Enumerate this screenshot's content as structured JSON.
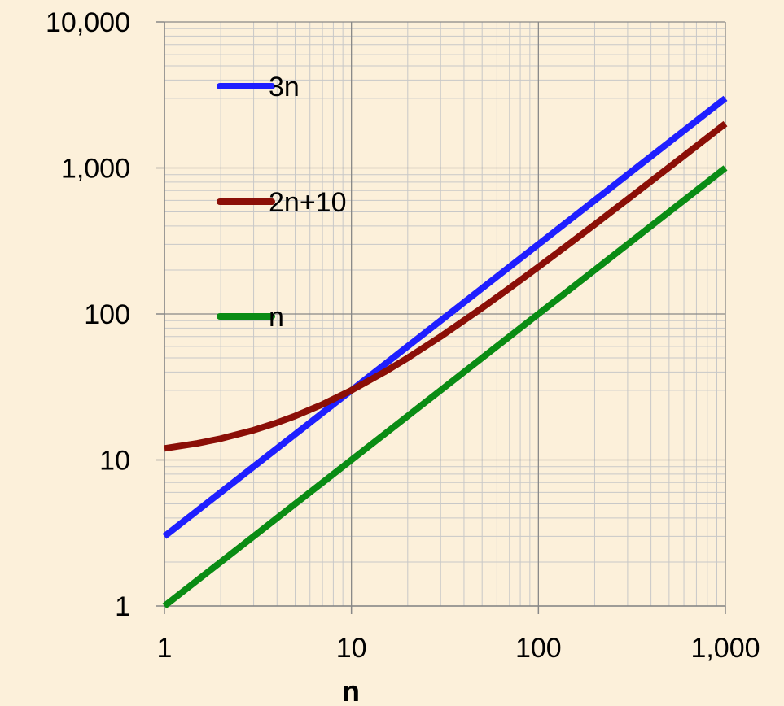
{
  "chart_data": {
    "type": "line",
    "x_scale": "log",
    "y_scale": "log",
    "xlim": [
      1,
      1000
    ],
    "ylim": [
      1,
      10000
    ],
    "xlabel": "n",
    "ylabel": "",
    "title": "",
    "grid": true,
    "legend_position": "top-left",
    "x_ticks": [
      1,
      10,
      100,
      1000
    ],
    "x_tick_labels": [
      "1",
      "10",
      "100",
      "1,000"
    ],
    "y_ticks": [
      1,
      10,
      100,
      1000,
      10000
    ],
    "y_tick_labels": [
      "1",
      "10",
      "100",
      "1,000",
      "10,000"
    ],
    "x": [
      1,
      1.5,
      2,
      3,
      4,
      5,
      7,
      10,
      15,
      20,
      30,
      50,
      70,
      100,
      150,
      200,
      300,
      500,
      700,
      1000
    ],
    "series": [
      {
        "name": "3n",
        "color": "#1F1FFF",
        "values": [
          3,
          4.5,
          6,
          9,
          12,
          15,
          21,
          30,
          45,
          60,
          90,
          150,
          210,
          300,
          450,
          600,
          900,
          1500,
          2100,
          3000
        ]
      },
      {
        "name": "2n+10",
        "color": "#8B0F07",
        "values": [
          12,
          13,
          14,
          16,
          18,
          20,
          24,
          30,
          40,
          50,
          70,
          110,
          150,
          210,
          310,
          410,
          610,
          1010,
          1410,
          2010
        ]
      },
      {
        "name": "n",
        "color": "#0A8C14",
        "values": [
          1,
          1.5,
          2,
          3,
          4,
          5,
          7,
          10,
          15,
          20,
          30,
          50,
          70,
          100,
          150,
          200,
          300,
          500,
          700,
          1000
        ]
      }
    ]
  }
}
